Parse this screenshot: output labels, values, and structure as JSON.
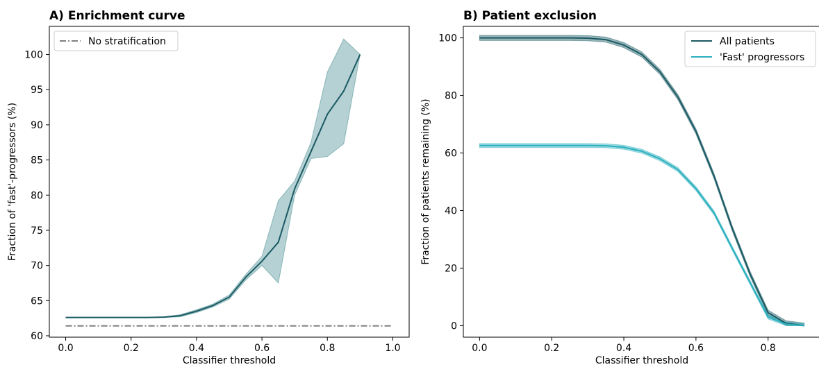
{
  "chart_data": [
    {
      "type": "line",
      "title": "A) Enrichment curve",
      "xlabel": "Classifier threshold",
      "ylabel": "Fraction of 'fast'-progressors (%)",
      "xlim": [
        -0.05,
        1.05
      ],
      "ylim": [
        59.8,
        104.0
      ],
      "xticks": [
        0.0,
        0.2,
        0.4,
        0.6,
        0.8,
        1.0
      ],
      "xtick_labels": [
        "0.0",
        "0.2",
        "0.4",
        "0.6",
        "0.8",
        "1.0"
      ],
      "yticks": [
        60,
        65,
        70,
        75,
        80,
        85,
        90,
        95,
        100
      ],
      "ytick_labels": [
        "60",
        "65",
        "70",
        "75",
        "80",
        "85",
        "90",
        "95",
        "100"
      ],
      "grid": false,
      "legend_position": "top-left",
      "x": [
        0.0,
        0.05,
        0.1,
        0.15,
        0.2,
        0.25,
        0.3,
        0.35,
        0.4,
        0.45,
        0.5,
        0.55,
        0.6,
        0.65,
        0.7,
        0.75,
        0.8,
        0.85,
        0.9
      ],
      "series": [
        {
          "values": [
            62.6,
            62.6,
            62.6,
            62.6,
            62.6,
            62.6,
            62.65,
            62.85,
            63.5,
            64.3,
            65.5,
            68.3,
            70.6,
            73.3,
            80.9,
            86.2,
            91.5,
            94.8,
            100.0
          ],
          "band_upper": [
            62.6,
            62.6,
            62.6,
            62.6,
            62.6,
            62.6,
            62.7,
            63.0,
            63.7,
            64.5,
            65.8,
            68.7,
            71.3,
            79.2,
            82.0,
            87.5,
            97.5,
            102.2,
            100.0
          ],
          "band_lower": [
            62.6,
            62.6,
            62.6,
            62.6,
            62.6,
            62.6,
            62.6,
            62.7,
            63.3,
            64.1,
            65.2,
            67.9,
            70.0,
            67.5,
            80.0,
            85.2,
            85.5,
            87.3,
            100.0
          ],
          "color": "#1a5a63",
          "band_color": "#2a7b80"
        },
        {
          "name": "No stratification",
          "x": [
            0.0,
            1.0
          ],
          "values": [
            61.4,
            61.4
          ],
          "color": "#808080",
          "style": "dashdot"
        }
      ]
    },
    {
      "type": "line",
      "title": "B) Patient exclusion",
      "xlabel": "Classifier threshold",
      "ylabel": "Fraction of patients remaining (%)",
      "xlim": [
        -0.045,
        0.945
      ],
      "ylim": [
        -4.0,
        104.0
      ],
      "xticks": [
        0.0,
        0.2,
        0.4,
        0.6,
        0.8
      ],
      "xtick_labels": [
        "0.0",
        "0.2",
        "0.4",
        "0.6",
        "0.8"
      ],
      "yticks": [
        0,
        20,
        40,
        60,
        80,
        100
      ],
      "ytick_labels": [
        "0",
        "20",
        "40",
        "60",
        "80",
        "100"
      ],
      "grid": false,
      "legend_position": "top-right",
      "x": [
        0.0,
        0.05,
        0.1,
        0.15,
        0.2,
        0.25,
        0.3,
        0.35,
        0.4,
        0.45,
        0.5,
        0.55,
        0.6,
        0.65,
        0.7,
        0.75,
        0.8,
        0.85,
        0.9
      ],
      "series": [
        {
          "name": "All patients",
          "values": [
            100,
            100,
            100,
            100,
            100,
            100,
            99.9,
            99.4,
            97.5,
            94.2,
            88.2,
            79.4,
            67.5,
            52.0,
            34.0,
            18.0,
            4.5,
            0.8,
            0.0
          ],
          "band_width": 0.9,
          "color": "#1a5a63"
        },
        {
          "name": "'Fast' progressors",
          "values": [
            62.6,
            62.6,
            62.6,
            62.6,
            62.6,
            62.6,
            62.6,
            62.5,
            62.0,
            60.6,
            58.0,
            54.2,
            47.6,
            39.2,
            27.0,
            15.0,
            3.0,
            0.5,
            0.0
          ],
          "band_width": 0.7,
          "color": "#2ab0be"
        }
      ]
    }
  ]
}
